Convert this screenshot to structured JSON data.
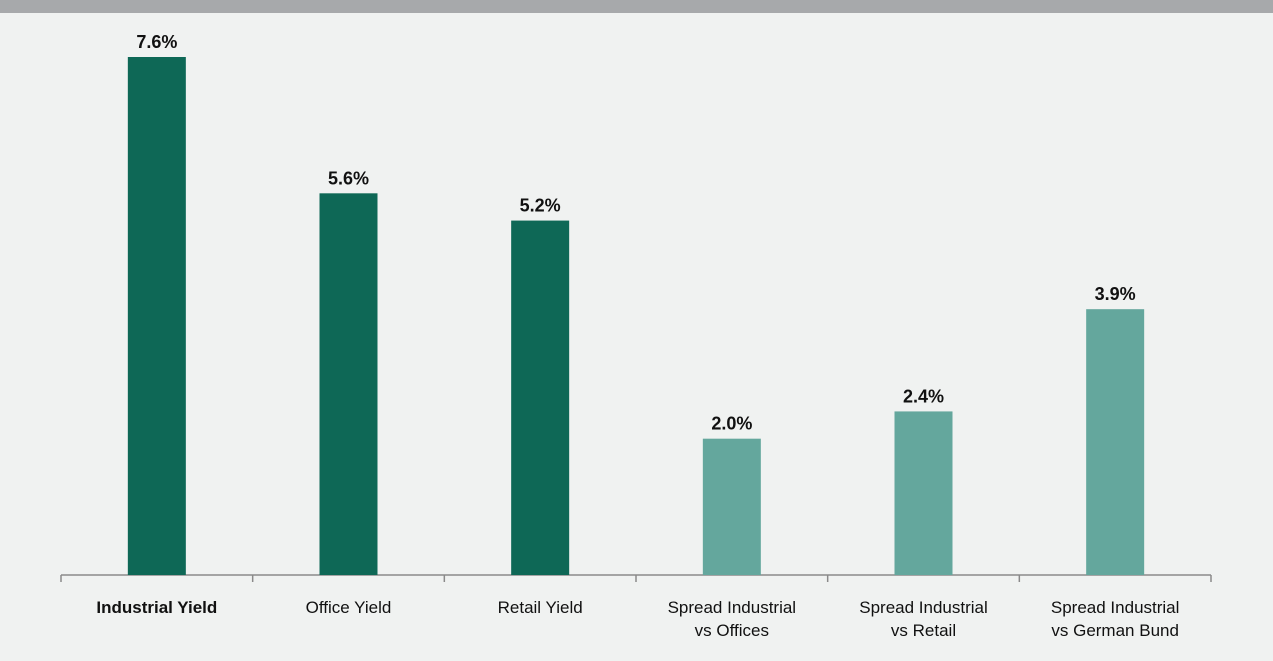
{
  "chart_data": {
    "type": "bar",
    "categories": [
      [
        "Industrial Yield"
      ],
      [
        "Office Yield"
      ],
      [
        "Retail Yield"
      ],
      [
        "Spread Industrial",
        "vs Offices"
      ],
      [
        "Spread Industrial",
        "vs Retail"
      ],
      [
        "Spread Industrial",
        "vs German Bund"
      ]
    ],
    "values": [
      7.6,
      5.6,
      5.2,
      2.0,
      2.4,
      3.9
    ],
    "value_labels": [
      "7.6%",
      "5.6%",
      "5.2%",
      "2.0%",
      "2.4%",
      "3.9%"
    ],
    "bar_colors": [
      "#0e6856",
      "#0e6856",
      "#0e6856",
      "#64a79d",
      "#64a79d",
      "#64a79d"
    ],
    "bold_categories": [
      0
    ],
    "ylim": [
      0,
      7.6
    ],
    "grid": false,
    "title": "",
    "xlabel": "",
    "ylabel": ""
  },
  "colors": {
    "background": "#f0f2f1",
    "top_band": "#a7a9ab",
    "axis": "#8a8a8a"
  }
}
